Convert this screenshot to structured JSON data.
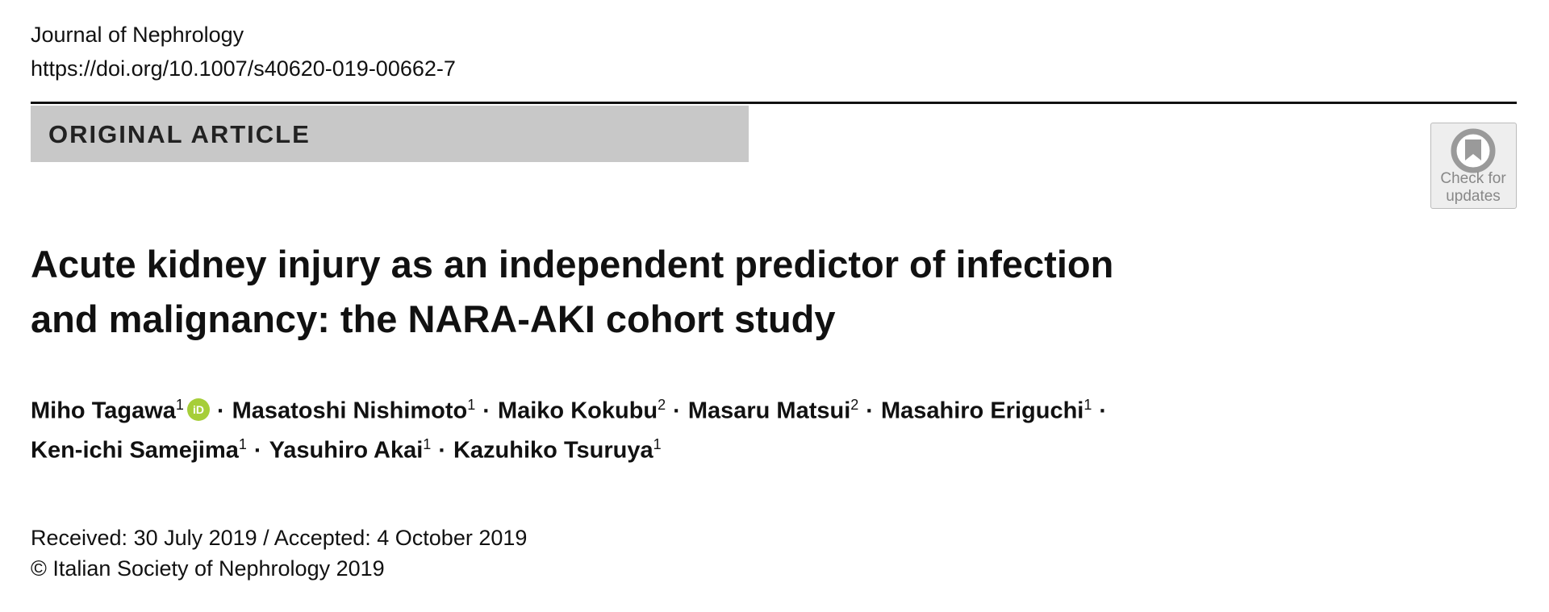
{
  "journal": "Journal of Nephrology",
  "doi": "https://doi.org/10.1007/s40620-019-00662-7",
  "article_type": "ORIGINAL ARTICLE",
  "badge": {
    "line1": "Check for",
    "line2": "updates"
  },
  "title_lines": [
    "Acute kidney injury as an independent predictor of infection",
    "and malignancy: the NARA-AKI cohort study"
  ],
  "author_separator": "·",
  "orcid_icon": "iD",
  "author_lines": [
    [
      {
        "name": "Miho Tagawa",
        "aff": 1,
        "orcid": true
      },
      {
        "name": "Masatoshi Nishimoto",
        "aff": 1
      },
      {
        "name": "Maiko Kokubu",
        "aff": 2
      },
      {
        "name": "Masaru Matsui",
        "aff": 2
      },
      {
        "name": "Masahiro Eriguchi",
        "aff": 1
      }
    ],
    [
      {
        "name": "Ken-ichi Samejima",
        "aff": 1
      },
      {
        "name": "Yasuhiro Akai",
        "aff": 1
      },
      {
        "name": "Kazuhiko Tsuruya",
        "aff": 1
      }
    ]
  ],
  "dates": "Received: 30 July 2019 / Accepted: 4 October 2019",
  "copyright": "© Italian Society of Nephrology 2019"
}
